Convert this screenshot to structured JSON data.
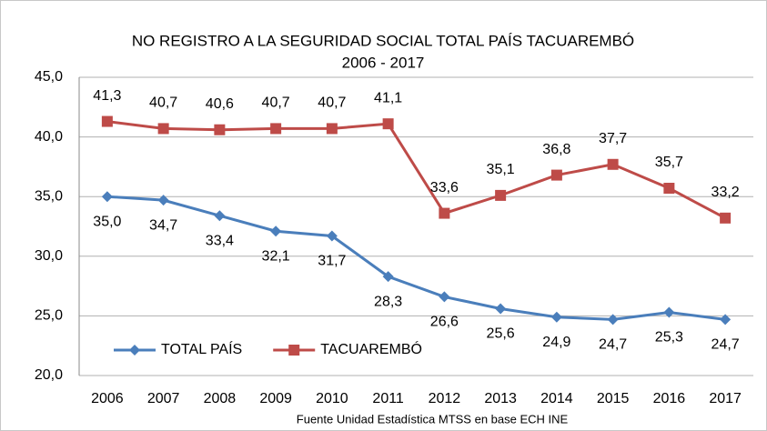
{
  "chart_data": {
    "type": "line",
    "title": "NO REGISTRO A LA SEGURIDAD SOCIAL TOTAL PAÍS TACUAREMBÓ",
    "subtitle": "2006 - 2017",
    "source": "Fuente Unidad Estadística MTSS en base ECH INE",
    "categories": [
      "2006",
      "2007",
      "2008",
      "2009",
      "2010",
      "2011",
      "2012",
      "2013",
      "2014",
      "2015",
      "2016",
      "2017"
    ],
    "series": [
      {
        "name": "TOTAL PAÍS",
        "color": "#4a7ebb",
        "marker": "diamond",
        "values": [
          35.0,
          34.7,
          33.4,
          32.1,
          31.7,
          28.3,
          26.6,
          25.6,
          24.9,
          24.7,
          25.3,
          24.7
        ],
        "value_labels": [
          "35,0",
          "34,7",
          "33,4",
          "32,1",
          "31,7",
          "28,3",
          "26,6",
          "25,6",
          "24,9",
          "24,7",
          "25,3",
          "24,7"
        ],
        "label_position": "below"
      },
      {
        "name": "TACUAREMBÓ",
        "color": "#be4b48",
        "marker": "square",
        "values": [
          41.3,
          40.7,
          40.6,
          40.7,
          40.7,
          41.1,
          33.6,
          35.1,
          36.8,
          37.7,
          35.7,
          33.2
        ],
        "value_labels": [
          "41,3",
          "40,7",
          "40,6",
          "40,7",
          "40,7",
          "41,1",
          "33,6",
          "35,1",
          "36,8",
          "37,7",
          "35,7",
          "33,2"
        ],
        "label_position": "above"
      }
    ],
    "ylim": [
      20,
      45
    ],
    "yticks": [
      {
        "value": 20,
        "label": "20,0"
      },
      {
        "value": 25,
        "label": "25,0"
      },
      {
        "value": 30,
        "label": "30,0"
      },
      {
        "value": 35,
        "label": "35,0"
      },
      {
        "value": 40,
        "label": "40,0"
      },
      {
        "value": 45,
        "label": "45,0"
      }
    ],
    "grid": true,
    "legend": "lower left"
  }
}
